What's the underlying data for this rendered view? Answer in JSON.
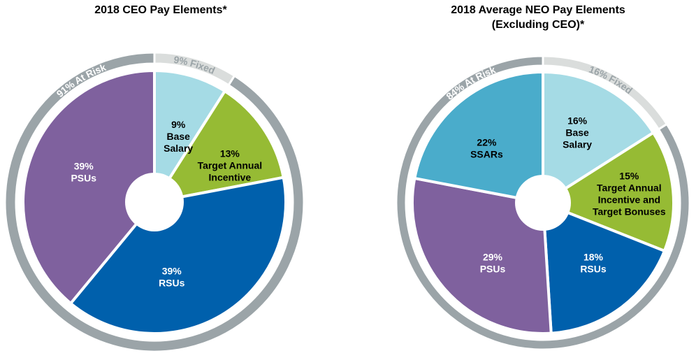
{
  "chart_data": [
    {
      "type": "pie",
      "title": "2018 CEO Pay Elements*",
      "slices": [
        {
          "label_lines": [
            "9%",
            "Base",
            "Salary"
          ],
          "value": 9,
          "color": "#a5dbe5",
          "text_color": "#000000"
        },
        {
          "label_lines": [
            "13%",
            "Target Annual",
            "Incentive"
          ],
          "value": 13,
          "color": "#96bb34",
          "text_color": "#000000"
        },
        {
          "label_lines": [
            "39%",
            "RSUs"
          ],
          "value": 39,
          "color": "#0060ac",
          "text_color": "#ffffff"
        },
        {
          "label_lines": [
            "39%",
            "PSUs"
          ],
          "value": 39,
          "color": "#7f619e",
          "text_color": "#ffffff"
        }
      ],
      "ring": [
        {
          "label": "9% Fixed",
          "value": 9,
          "color": "#dadddc",
          "text_color": "#9ba4a8"
        },
        {
          "label": "91% At Risk",
          "value": 91,
          "color": "#9ba4a8",
          "text_color": "#ffffff"
        }
      ]
    },
    {
      "type": "pie",
      "title": "2018 Average NEO Pay Elements\n(Excluding CEO)*",
      "slices": [
        {
          "label_lines": [
            "16%",
            "Base",
            "Salary"
          ],
          "value": 16,
          "color": "#a5dbe5",
          "text_color": "#000000"
        },
        {
          "label_lines": [
            "15%",
            "Target Annual",
            "Incentive and",
            "Target Bonuses"
          ],
          "value": 15,
          "color": "#96bb34",
          "text_color": "#000000"
        },
        {
          "label_lines": [
            "18%",
            "RSUs"
          ],
          "value": 18,
          "color": "#0060ac",
          "text_color": "#ffffff"
        },
        {
          "label_lines": [
            "29%",
            "PSUs"
          ],
          "value": 29,
          "color": "#7f619e",
          "text_color": "#ffffff"
        },
        {
          "label_lines": [
            "22%",
            "SSARs"
          ],
          "value": 22,
          "color": "#4aaccb",
          "text_color": "#000000"
        }
      ],
      "ring": [
        {
          "label": "16% Fixed",
          "value": 16,
          "color": "#dadddc",
          "text_color": "#9ba4a8"
        },
        {
          "label": "84% At Risk",
          "value": 84,
          "color": "#9ba4a8",
          "text_color": "#ffffff"
        }
      ]
    }
  ]
}
